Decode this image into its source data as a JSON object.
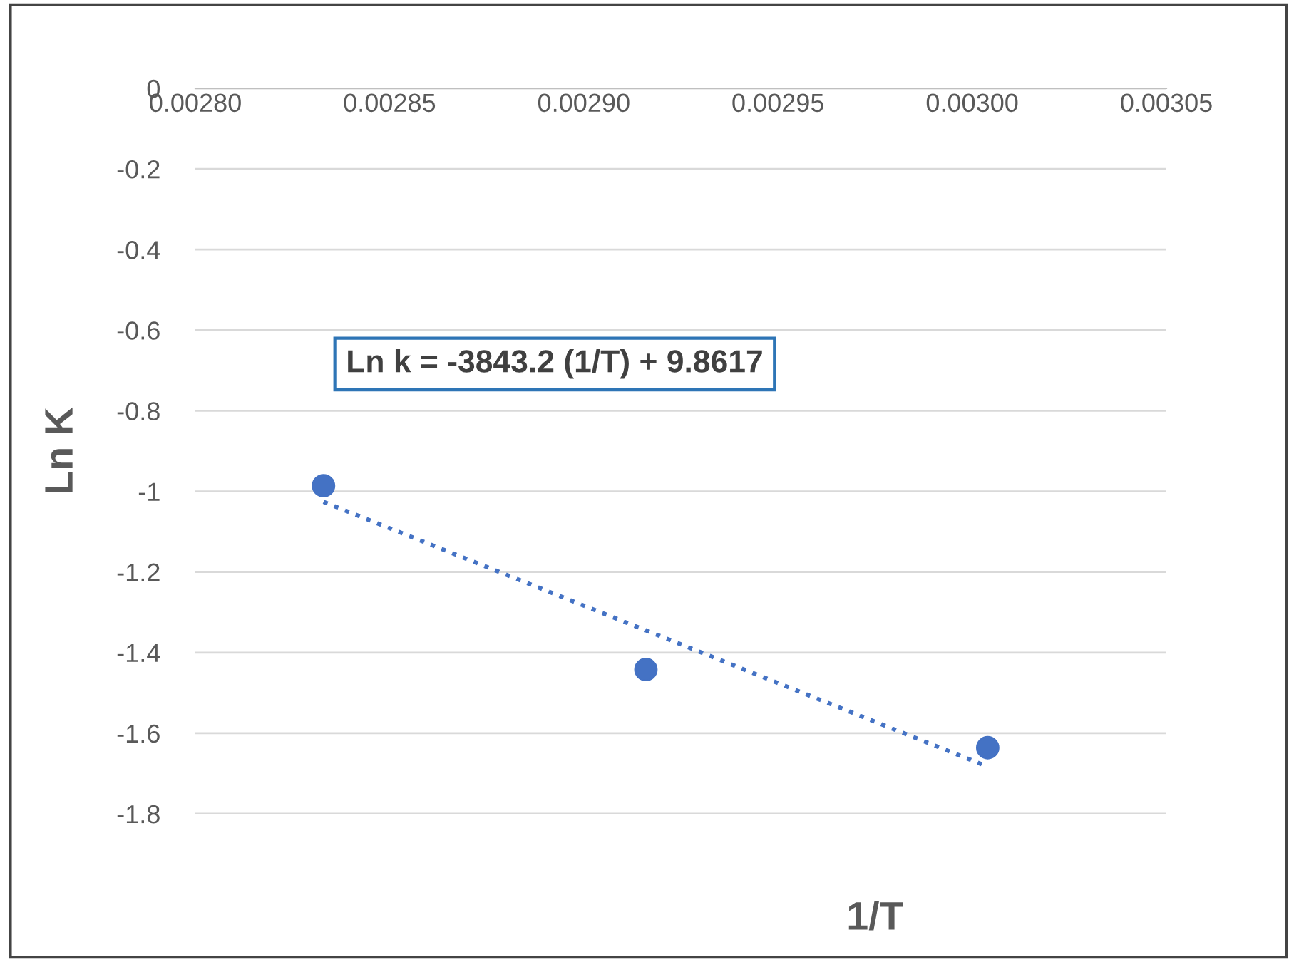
{
  "chart_data": {
    "type": "scatter",
    "xlabel": "1/T",
    "ylabel": "Ln K",
    "series": [
      {
        "color": "#4472c4",
        "marker": "circle",
        "x": [
          0.002833,
          0.002916,
          0.003004
        ],
        "values": [
          -0.986,
          -1.442,
          -1.636
        ]
      },
      {
        "type": "line",
        "color": "#4472c4",
        "line_style": "dotted",
        "marker": "none",
        "x": [
          0.002833,
          0.003004
        ],
        "values": [
          -1.026,
          -1.683
        ]
      }
    ],
    "xlim": [
      0.0028,
      0.00305
    ],
    "xticks": [
      {
        "value": 0.0028,
        "label": "0.00280"
      },
      {
        "value": 0.00285,
        "label": "0.00285"
      },
      {
        "value": 0.0029,
        "label": "0.00290"
      },
      {
        "value": 0.00295,
        "label": "0.00295"
      },
      {
        "value": 0.003,
        "label": "0.00300"
      },
      {
        "value": 0.00305,
        "label": "0.00305"
      }
    ],
    "ylim": [
      -1.8,
      0
    ],
    "yticks": [
      0,
      -0.2,
      -0.4,
      -0.6,
      -0.8,
      -1,
      -1.2,
      -1.4,
      -1.6,
      -1.8
    ],
    "grid": "y",
    "legend": false,
    "annotations": [
      "Ln k = -3843.2 (1/T) + 9.8617"
    ]
  }
}
